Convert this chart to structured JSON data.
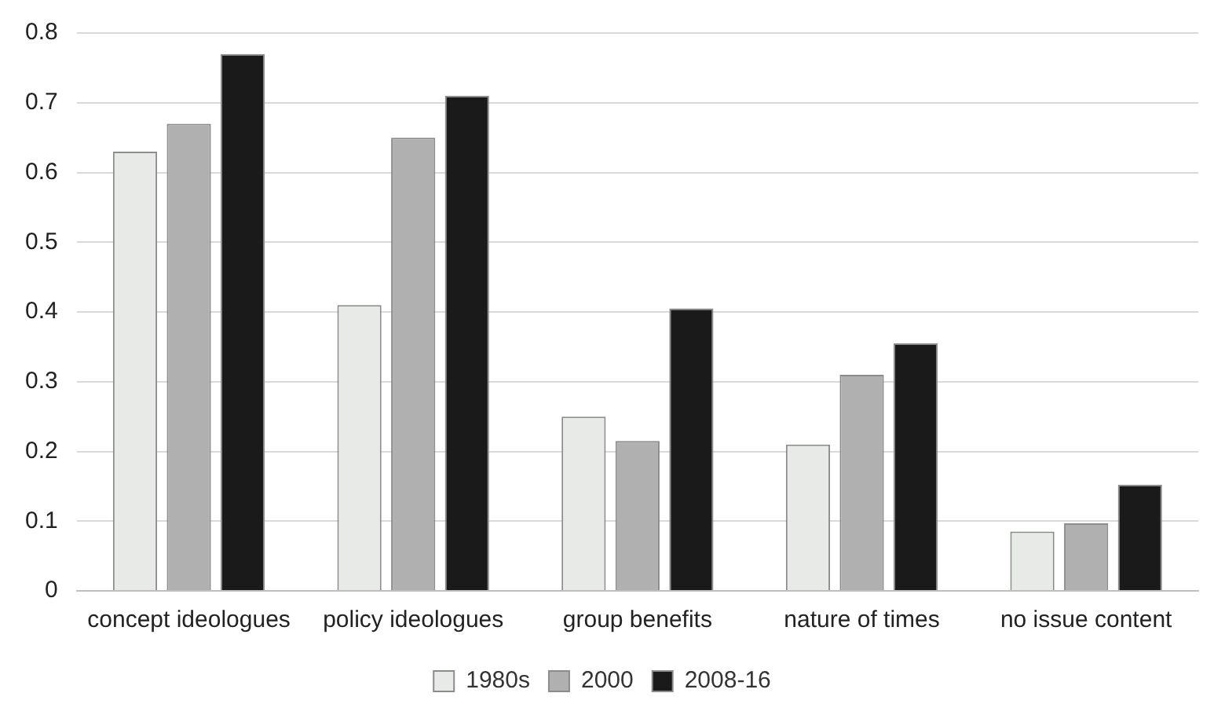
{
  "chart_data": {
    "type": "bar",
    "categories": [
      "concept ideologues",
      "policy ideologues",
      "group benefits",
      "nature of times",
      "no issue content"
    ],
    "series": [
      {
        "name": "1980s",
        "color": "#e8eae8",
        "values": [
          0.63,
          0.41,
          0.25,
          0.21,
          0.085
        ]
      },
      {
        "name": "2000",
        "color": "#b0b0b0",
        "values": [
          0.67,
          0.65,
          0.215,
          0.31,
          0.097
        ]
      },
      {
        "name": "2008-16",
        "color": "#1a1a1a",
        "values": [
          0.77,
          0.71,
          0.405,
          0.355,
          0.152
        ]
      }
    ],
    "ylim": [
      0,
      0.8
    ],
    "yticks": [
      0,
      0.1,
      0.2,
      0.3,
      0.4,
      0.5,
      0.6,
      0.7,
      0.8
    ],
    "grid": "y",
    "legend": "bottom"
  }
}
